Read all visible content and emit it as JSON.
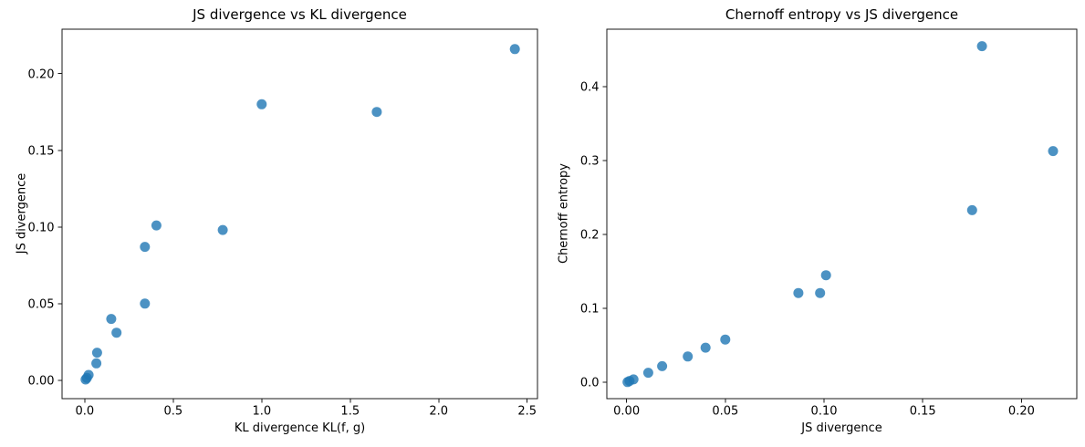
{
  "figure": {
    "background": "#ffffff",
    "marker_color": "#1f77b4",
    "marker_opacity": 0.8,
    "marker_radius": 5.5,
    "text_color": "#000000",
    "spine_color": "#1a1a1a"
  },
  "chart_data": [
    {
      "type": "scatter",
      "title": "JS divergence vs KL divergence",
      "xlabel": "KL divergence KL(f, g)",
      "ylabel": "JS divergence",
      "xlim": [
        -0.128,
        2.558
      ],
      "ylim": [
        -0.012,
        0.229
      ],
      "xticks": [
        0.0,
        0.5,
        1.0,
        1.5,
        2.0,
        2.5
      ],
      "xtick_labels": [
        "0.0",
        "0.5",
        "1.0",
        "1.5",
        "2.0",
        "2.5"
      ],
      "yticks": [
        0.0,
        0.05,
        0.1,
        0.15,
        0.2
      ],
      "ytick_labels": [
        "0.00",
        "0.05",
        "0.10",
        "0.15",
        "0.20"
      ],
      "grid": false,
      "legend": null,
      "points": [
        [
          0.005,
          0.0005
        ],
        [
          0.012,
          0.0015
        ],
        [
          0.022,
          0.0035
        ],
        [
          0.066,
          0.011
        ],
        [
          0.07,
          0.018
        ],
        [
          0.15,
          0.04
        ],
        [
          0.18,
          0.031
        ],
        [
          0.34,
          0.05
        ],
        [
          0.34,
          0.087
        ],
        [
          0.405,
          0.101
        ],
        [
          0.78,
          0.098
        ],
        [
          1.0,
          0.18
        ],
        [
          1.65,
          0.175
        ],
        [
          2.43,
          0.216
        ]
      ]
    },
    {
      "type": "scatter",
      "title": "Chernoff entropy vs JS divergence",
      "xlabel": "JS divergence",
      "ylabel": "Chernoff entropy",
      "xlim": [
        -0.01,
        0.228
      ],
      "ylim": [
        -0.022,
        0.478
      ],
      "xticks": [
        0.0,
        0.05,
        0.1,
        0.15,
        0.2
      ],
      "xtick_labels": [
        "0.00",
        "0.05",
        "0.10",
        "0.15",
        "0.20"
      ],
      "yticks": [
        0.0,
        0.1,
        0.2,
        0.3,
        0.4
      ],
      "ytick_labels": [
        "0.0",
        "0.1",
        "0.2",
        "0.3",
        "0.4"
      ],
      "grid": false,
      "legend": null,
      "points": [
        [
          0.0005,
          0.0005
        ],
        [
          0.0015,
          0.002
        ],
        [
          0.0035,
          0.004
        ],
        [
          0.011,
          0.013
        ],
        [
          0.018,
          0.022
        ],
        [
          0.031,
          0.035
        ],
        [
          0.04,
          0.047
        ],
        [
          0.05,
          0.058
        ],
        [
          0.087,
          0.121
        ],
        [
          0.098,
          0.121
        ],
        [
          0.101,
          0.145
        ],
        [
          0.175,
          0.233
        ],
        [
          0.18,
          0.455
        ],
        [
          0.216,
          0.313
        ]
      ]
    }
  ]
}
